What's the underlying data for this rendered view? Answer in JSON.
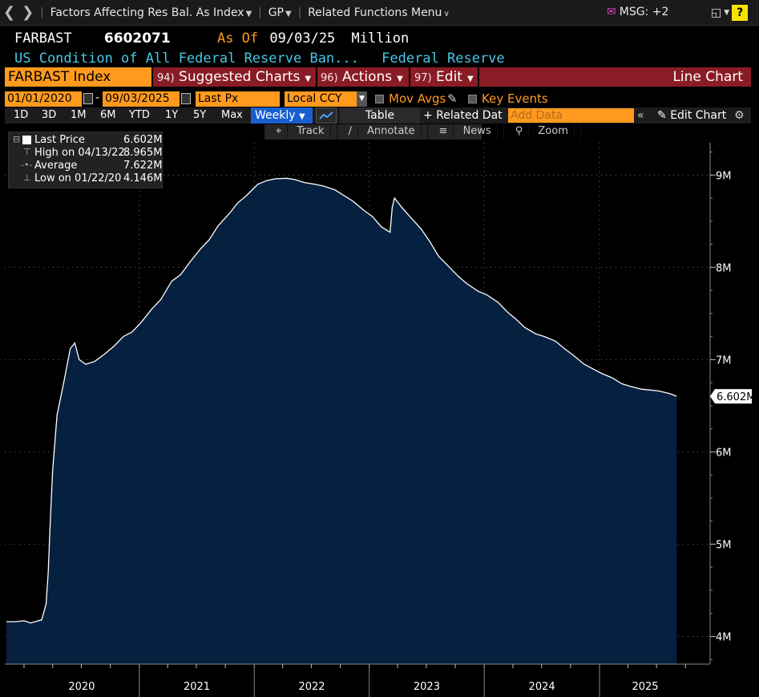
{
  "topbar": {
    "title": "Factors Affecting Res Bal. As Index",
    "gp": "GP",
    "related": "Related Functions Menu",
    "msg": "MSG: +2",
    "help": "?"
  },
  "header": {
    "ticker": "FARBAST",
    "value": "6602071",
    "as_of_label": "As Of",
    "as_of_date": "09/03/25",
    "unit": "Million",
    "description": "US Condition of All Federal Reserve Ban...",
    "source": "Federal Reserve"
  },
  "menubar": {
    "index": "FARBAST Index",
    "suggested_num": "94)",
    "suggested": "Suggested Charts",
    "actions_num": "96)",
    "actions": "Actions",
    "edit_num": "97)",
    "edit": "Edit",
    "chart_type": "Line Chart"
  },
  "controls": {
    "start_date": "01/01/2020",
    "end_date": "09/03/2025",
    "field": "Last Px",
    "currency": "Local CCY",
    "mov_avgs": "Mov Avgs",
    "key_events": "Key Events",
    "ranges": [
      "1D",
      "3D",
      "1M",
      "6M",
      "YTD",
      "1Y",
      "5Y",
      "Max"
    ],
    "frequency": "Weekly",
    "table": "Table",
    "related_data": "+ Related Dat",
    "add_data_placeholder": "Add Data",
    "edit_chart": "Edit Chart"
  },
  "tools": [
    "Track",
    "Annotate",
    "News",
    "Zoom"
  ],
  "legend": {
    "items": [
      {
        "label": "Last Price",
        "value": "6.602M"
      },
      {
        "label": "High on 04/13/22",
        "value": "8.965M"
      },
      {
        "label": "Average",
        "value": "7.622M"
      },
      {
        "label": "Low on 01/22/20",
        "value": "4.146M"
      }
    ]
  },
  "colors": {
    "fill": "#062040",
    "line": "#ffffff",
    "accent": "#ff9a1f",
    "menu": "#8a1c25",
    "desc": "#46c8e6"
  },
  "chart_data": {
    "type": "area",
    "title": "",
    "xlabel": "",
    "ylabel": "",
    "ylim": [
      3.7,
      9.35
    ],
    "xlim": [
      "2019-11-01",
      "2025-10-18"
    ],
    "y_ticks": [
      4,
      5,
      6,
      7,
      8,
      9
    ],
    "y_tick_labels": [
      "4M",
      "5M",
      "6M",
      "7M",
      "8M",
      "9M"
    ],
    "x_tick_labels": [
      "2020",
      "2021",
      "2022",
      "2023",
      "2024",
      "2025"
    ],
    "last_value_label": "6.602M",
    "grid": true,
    "series": [
      {
        "name": "Last Price",
        "x": [
          "2019-11-06",
          "2019-12-04",
          "2020-01-01",
          "2020-01-22",
          "2020-02-26",
          "2020-03-11",
          "2020-03-18",
          "2020-03-25",
          "2020-04-01",
          "2020-04-15",
          "2020-05-06",
          "2020-05-27",
          "2020-06-10",
          "2020-06-24",
          "2020-07-15",
          "2020-08-12",
          "2020-09-09",
          "2020-10-14",
          "2020-11-11",
          "2020-12-09",
          "2021-01-06",
          "2021-02-10",
          "2021-03-10",
          "2021-04-14",
          "2021-05-12",
          "2021-06-09",
          "2021-07-14",
          "2021-08-11",
          "2021-09-08",
          "2021-10-13",
          "2021-11-10",
          "2021-12-08",
          "2022-01-12",
          "2022-02-09",
          "2022-03-09",
          "2022-04-13",
          "2022-05-11",
          "2022-06-08",
          "2022-07-13",
          "2022-08-10",
          "2022-09-14",
          "2022-10-12",
          "2022-11-09",
          "2022-12-14",
          "2023-01-11",
          "2023-02-08",
          "2023-03-08",
          "2023-03-15",
          "2023-03-22",
          "2023-04-12",
          "2023-05-10",
          "2023-06-14",
          "2023-07-12",
          "2023-08-09",
          "2023-09-13",
          "2023-10-11",
          "2023-11-08",
          "2023-12-13",
          "2024-01-10",
          "2024-02-14",
          "2024-03-13",
          "2024-04-10",
          "2024-05-08",
          "2024-06-12",
          "2024-07-10",
          "2024-08-14",
          "2024-09-11",
          "2024-10-09",
          "2024-11-13",
          "2024-12-11",
          "2025-01-08",
          "2025-02-12",
          "2025-03-12",
          "2025-04-09",
          "2025-05-14",
          "2025-06-11",
          "2025-07-09",
          "2025-08-13",
          "2025-09-03"
        ],
        "values": [
          4.16,
          4.16,
          4.17,
          4.146,
          4.18,
          4.35,
          4.7,
          5.3,
          5.8,
          6.4,
          6.75,
          7.12,
          7.18,
          7.0,
          6.95,
          6.98,
          7.05,
          7.15,
          7.25,
          7.3,
          7.4,
          7.55,
          7.65,
          7.85,
          7.92,
          8.05,
          8.2,
          8.3,
          8.45,
          8.58,
          8.7,
          8.78,
          8.9,
          8.94,
          8.96,
          8.965,
          8.95,
          8.92,
          8.9,
          8.88,
          8.84,
          8.78,
          8.72,
          8.62,
          8.55,
          8.44,
          8.38,
          8.65,
          8.75,
          8.66,
          8.55,
          8.42,
          8.28,
          8.12,
          8.0,
          7.9,
          7.82,
          7.74,
          7.7,
          7.62,
          7.52,
          7.44,
          7.35,
          7.28,
          7.25,
          7.2,
          7.12,
          7.05,
          6.95,
          6.9,
          6.85,
          6.8,
          6.74,
          6.71,
          6.68,
          6.67,
          6.66,
          6.63,
          6.602
        ]
      }
    ]
  }
}
